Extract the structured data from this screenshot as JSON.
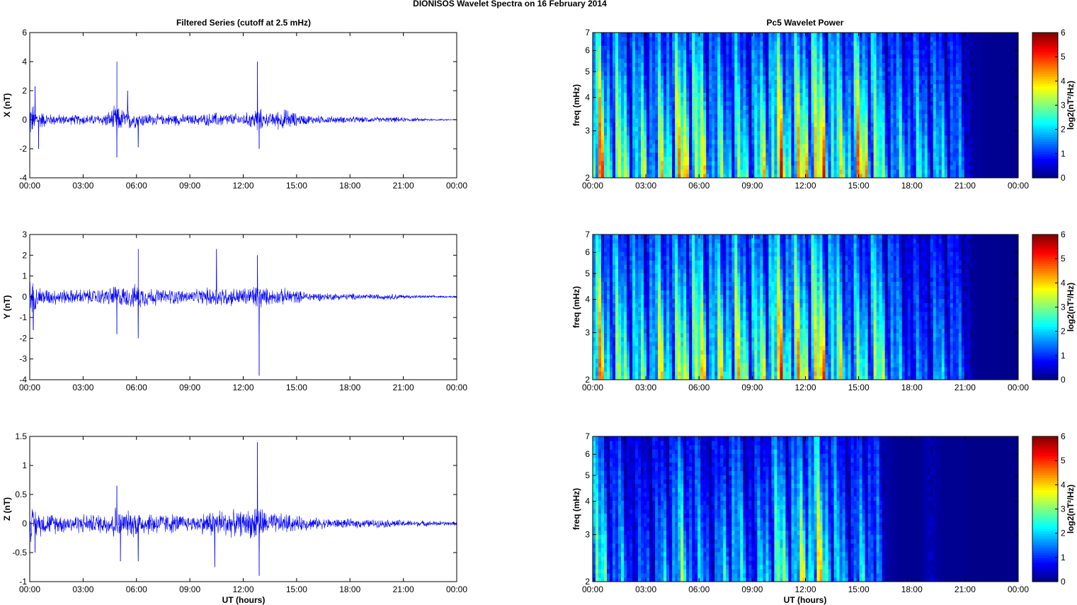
{
  "figure": {
    "title": "DIONISOS Wavelet Spectra on 16 February  2014",
    "left_title": "Filtered Series (cutoff at 2.5 mHz)",
    "right_title": "Pc5 Wavelet Power",
    "xlabel": "UT (hours)"
  },
  "chart_data": [
    {
      "type": "line",
      "component": "X",
      "ylabel": "X (nT)",
      "x_ticks": [
        "00:00",
        "03:00",
        "06:00",
        "09:00",
        "12:00",
        "15:00",
        "18:00",
        "21:00",
        "00:00"
      ],
      "y_ticks": [
        -4,
        -2,
        0,
        2,
        4,
        6
      ],
      "ylim": [
        -4,
        6
      ],
      "xlim_hours": [
        0,
        24
      ],
      "line_color": "#0000ff",
      "envelope": {
        "x_hours": [
          0,
          0.5,
          1,
          1.5,
          2,
          2.5,
          3,
          3.5,
          4,
          4.5,
          4.8,
          5.2,
          5.7,
          6,
          6.5,
          7,
          7.5,
          8,
          8.5,
          9,
          9.5,
          10,
          10.5,
          11,
          11.5,
          12,
          12.5,
          12.8,
          13.2,
          13.5,
          14,
          14.5,
          15,
          15.5,
          16,
          16.5,
          17,
          17.5,
          18,
          18.5,
          19,
          19.5,
          20,
          20.5,
          21,
          21.5,
          22,
          22.5,
          23,
          23.5,
          24
        ],
        "amplitude": [
          1.5,
          0.8,
          0.5,
          0.45,
          0.4,
          0.4,
          0.45,
          0.4,
          0.45,
          0.7,
          1.1,
          0.9,
          0.85,
          0.6,
          0.55,
          0.45,
          0.4,
          0.5,
          0.45,
          0.4,
          0.45,
          0.5,
          0.6,
          0.55,
          0.5,
          0.5,
          0.7,
          1.1,
          0.6,
          0.5,
          0.8,
          0.85,
          0.5,
          0.4,
          0.35,
          0.3,
          0.3,
          0.25,
          0.28,
          0.25,
          0.22,
          0.2,
          0.2,
          0.22,
          0.18,
          0.15,
          0.12,
          0.1,
          0.08,
          0.06,
          0.05
        ]
      },
      "spikes": [
        {
          "x_hours": 0.3,
          "y": 2.3
        },
        {
          "x_hours": 0.5,
          "y": -2.0
        },
        {
          "x_hours": 4.9,
          "y": 4.0
        },
        {
          "x_hours": 4.9,
          "y": -2.6
        },
        {
          "x_hours": 5.5,
          "y": 2.0
        },
        {
          "x_hours": 6.1,
          "y": -1.9
        },
        {
          "x_hours": 12.8,
          "y": 4.0
        },
        {
          "x_hours": 12.9,
          "y": -2.0
        }
      ]
    },
    {
      "type": "line",
      "component": "Y",
      "ylabel": "Y (nT)",
      "x_ticks": [
        "00:00",
        "03:00",
        "06:00",
        "09:00",
        "12:00",
        "15:00",
        "18:00",
        "21:00",
        "00:00"
      ],
      "y_ticks": [
        -4,
        -3,
        -2,
        -1,
        0,
        1,
        2,
        3
      ],
      "ylim": [
        -4,
        3
      ],
      "xlim_hours": [
        0,
        24
      ],
      "line_color": "#0000ff",
      "envelope": {
        "x_hours": [
          0,
          0.5,
          1,
          1.5,
          2,
          2.5,
          3,
          3.5,
          4,
          4.5,
          4.8,
          5.2,
          5.7,
          6,
          6.5,
          7,
          7.5,
          8,
          8.5,
          9,
          9.5,
          10,
          10.5,
          11,
          11.5,
          12,
          12.5,
          12.8,
          13.2,
          13.5,
          14,
          14.5,
          15,
          15.5,
          16,
          16.5,
          17,
          17.5,
          18,
          18.5,
          19,
          19.5,
          20,
          20.5,
          21,
          21.5,
          22,
          22.5,
          23,
          23.5,
          24
        ],
        "amplitude": [
          0.9,
          0.6,
          0.45,
          0.45,
          0.4,
          0.4,
          0.45,
          0.4,
          0.45,
          0.5,
          0.7,
          0.55,
          0.6,
          0.7,
          0.55,
          0.5,
          0.4,
          0.45,
          0.4,
          0.35,
          0.4,
          0.5,
          0.6,
          0.55,
          0.5,
          0.5,
          0.6,
          0.8,
          0.5,
          0.45,
          0.4,
          0.5,
          0.35,
          0.3,
          0.25,
          0.22,
          0.2,
          0.18,
          0.18,
          0.18,
          0.16,
          0.15,
          0.15,
          0.18,
          0.12,
          0.1,
          0.08,
          0.08,
          0.06,
          0.05,
          0.05
        ]
      },
      "spikes": [
        {
          "x_hours": 0.2,
          "y": -1.6
        },
        {
          "x_hours": 4.9,
          "y": -1.8
        },
        {
          "x_hours": 6.1,
          "y": 2.3
        },
        {
          "x_hours": 6.1,
          "y": -2.0
        },
        {
          "x_hours": 10.5,
          "y": 2.3
        },
        {
          "x_hours": 12.8,
          "y": 2.0
        },
        {
          "x_hours": 12.9,
          "y": -3.8
        }
      ]
    },
    {
      "type": "line",
      "component": "Z",
      "ylabel": "Z (nT)",
      "x_ticks": [
        "00:00",
        "03:00",
        "06:00",
        "09:00",
        "12:00",
        "15:00",
        "18:00",
        "21:00",
        "00:00"
      ],
      "y_ticks": [
        -1,
        -0.5,
        0,
        0.5,
        1,
        1.5
      ],
      "ylim": [
        -1,
        1.5
      ],
      "xlim_hours": [
        0,
        24
      ],
      "line_color": "#0000ff",
      "envelope": {
        "x_hours": [
          0,
          0.5,
          1,
          1.5,
          2,
          2.5,
          3,
          3.5,
          4,
          4.5,
          4.8,
          5.2,
          5.7,
          6,
          6.5,
          7,
          7.5,
          8,
          8.5,
          9,
          9.5,
          10,
          10.5,
          11,
          11.5,
          12,
          12.5,
          12.8,
          13.2,
          13.5,
          14,
          14.5,
          15,
          15.5,
          16,
          16.5,
          17,
          17.5,
          18,
          18.5,
          19,
          19.5,
          20,
          20.5,
          21,
          21.5,
          22,
          22.5,
          23,
          23.5,
          24
        ],
        "amplitude": [
          0.35,
          0.25,
          0.2,
          0.2,
          0.18,
          0.18,
          0.2,
          0.18,
          0.2,
          0.25,
          0.35,
          0.25,
          0.25,
          0.3,
          0.22,
          0.25,
          0.2,
          0.2,
          0.18,
          0.15,
          0.18,
          0.25,
          0.3,
          0.28,
          0.25,
          0.25,
          0.3,
          0.45,
          0.25,
          0.22,
          0.2,
          0.2,
          0.15,
          0.14,
          0.12,
          0.1,
          0.1,
          0.09,
          0.09,
          0.09,
          0.08,
          0.08,
          0.08,
          0.08,
          0.07,
          0.06,
          0.06,
          0.05,
          0.05,
          0.04,
          0.04
        ]
      },
      "spikes": [
        {
          "x_hours": 0.3,
          "y": -0.5
        },
        {
          "x_hours": 4.9,
          "y": 0.65
        },
        {
          "x_hours": 5.1,
          "y": -0.65
        },
        {
          "x_hours": 6.1,
          "y": -0.65
        },
        {
          "x_hours": 10.4,
          "y": -0.75
        },
        {
          "x_hours": 12.8,
          "y": 1.4
        },
        {
          "x_hours": 12.9,
          "y": -0.9
        }
      ]
    },
    {
      "type": "heatmap",
      "component": "X",
      "ylabel": "freq (mHz)",
      "y_scale": "log",
      "ylim": [
        2,
        7
      ],
      "y_ticks": [
        2,
        3,
        4,
        5,
        6,
        7
      ],
      "x_ticks": [
        "00:00",
        "03:00",
        "06:00",
        "09:00",
        "12:00",
        "15:00",
        "18:00",
        "21:00",
        "00:00"
      ],
      "xlim_hours": [
        0,
        24
      ],
      "colorbar": {
        "label": "log2(nT²/Hz)",
        "range": [
          0,
          6
        ],
        "ticks": [
          0,
          1,
          2,
          3,
          4,
          5,
          6
        ],
        "colormap": "jet"
      },
      "activity_hours": [
        0,
        0.5,
        1,
        1.5,
        2,
        2.5,
        3,
        3.5,
        4,
        4.5,
        5,
        5.5,
        6,
        6.5,
        7,
        7.5,
        8,
        8.5,
        9,
        9.5,
        10,
        10.5,
        11,
        11.5,
        12,
        12.5,
        13,
        13.5,
        14,
        14.5,
        15,
        15.5,
        16,
        16.5,
        17,
        17.5,
        18,
        18.5,
        19,
        19.5,
        20,
        20.5,
        21,
        21.5,
        22,
        22.5,
        23,
        23.5,
        24
      ],
      "activity_level": [
        6,
        5.5,
        4.5,
        4.5,
        4,
        3.5,
        4,
        3.5,
        4.5,
        5,
        5.5,
        5.5,
        5,
        4,
        3.5,
        3.5,
        4,
        3.5,
        3.5,
        4,
        5,
        5.5,
        5,
        5,
        5.5,
        6,
        5.5,
        5,
        4,
        4.5,
        5.5,
        5.5,
        4.5,
        3,
        3,
        3,
        3,
        3,
        3,
        2.8,
        2.8,
        2.5,
        1.5,
        0.4,
        0.3,
        0.2,
        0.2,
        0.2,
        0.1
      ]
    },
    {
      "type": "heatmap",
      "component": "Y",
      "ylabel": "freq (mHz)",
      "y_scale": "log",
      "ylim": [
        2,
        7
      ],
      "y_ticks": [
        2,
        3,
        4,
        5,
        6,
        7
      ],
      "x_ticks": [
        "00:00",
        "03:00",
        "06:00",
        "09:00",
        "12:00",
        "15:00",
        "18:00",
        "21:00",
        "00:00"
      ],
      "xlim_hours": [
        0,
        24
      ],
      "colorbar": {
        "label": "log2(nT²/Hz)",
        "range": [
          0,
          6
        ],
        "ticks": [
          0,
          1,
          2,
          3,
          4,
          5,
          6
        ],
        "colormap": "jet"
      },
      "activity_hours": [
        0,
        0.5,
        1,
        1.5,
        2,
        2.5,
        3,
        3.5,
        4,
        4.5,
        5,
        5.5,
        6,
        6.5,
        7,
        7.5,
        8,
        8.5,
        9,
        9.5,
        10,
        10.5,
        11,
        11.5,
        12,
        12.5,
        13,
        13.5,
        14,
        14.5,
        15,
        15.5,
        16,
        16.5,
        17,
        17.5,
        18,
        18.5,
        19,
        19.5,
        20,
        20.5,
        21,
        21.5,
        22,
        22.5,
        23,
        23.5,
        24
      ],
      "activity_level": [
        5.5,
        5,
        4,
        4,
        4,
        3.5,
        3.5,
        4,
        4.5,
        4,
        4.5,
        5,
        5,
        4.5,
        4,
        4.5,
        5,
        4.5,
        4,
        4,
        5,
        5.5,
        5,
        5,
        5,
        5.5,
        5.5,
        4.5,
        4,
        3.5,
        3.5,
        4,
        4.5,
        3.5,
        3,
        2,
        2,
        2,
        2,
        2.5,
        2.5,
        2,
        1.5,
        0.3,
        0.2,
        0.2,
        0.2,
        0.1,
        0.1
      ]
    },
    {
      "type": "heatmap",
      "component": "Z",
      "ylabel": "freq (mHz)",
      "y_scale": "log",
      "ylim": [
        2,
        7
      ],
      "y_ticks": [
        2,
        3,
        4,
        5,
        6,
        7
      ],
      "x_ticks": [
        "00:00",
        "03:00",
        "06:00",
        "09:00",
        "12:00",
        "15:00",
        "18:00",
        "21:00",
        "00:00"
      ],
      "xlim_hours": [
        0,
        24
      ],
      "colorbar": {
        "label": "log2(nT²/Hz)",
        "range": [
          0,
          6
        ],
        "ticks": [
          0,
          1,
          2,
          3,
          4,
          5,
          6
        ],
        "colormap": "jet"
      },
      "activity_hours": [
        0,
        0.5,
        1,
        1.5,
        2,
        2.5,
        3,
        3.5,
        4,
        4.5,
        5,
        5.5,
        6,
        6.5,
        7,
        7.5,
        8,
        8.5,
        9,
        9.5,
        10,
        10.5,
        11,
        11.5,
        12,
        12.5,
        13,
        13.5,
        14,
        14.5,
        15,
        15.5,
        16,
        16.5,
        17,
        17.5,
        18,
        18.5,
        19,
        19.5,
        20,
        20.5,
        21,
        21.5,
        22,
        22.5,
        23,
        23.5,
        24
      ],
      "activity_level": [
        4.5,
        3.5,
        2.5,
        2.5,
        2,
        1.5,
        2,
        1.8,
        2.5,
        3,
        3.5,
        3,
        2.5,
        2,
        2,
        3,
        3.5,
        2.5,
        2,
        2.5,
        3.5,
        4,
        3.5,
        3.5,
        4.5,
        5,
        4.5,
        3.5,
        2.5,
        2,
        2.5,
        3,
        2.5,
        0.5,
        0.3,
        0.2,
        0.2,
        0.2,
        0.8,
        0.3,
        0.2,
        0.2,
        0.2,
        0.1,
        0.1,
        0.1,
        0.1,
        0.1,
        0.1
      ]
    }
  ]
}
